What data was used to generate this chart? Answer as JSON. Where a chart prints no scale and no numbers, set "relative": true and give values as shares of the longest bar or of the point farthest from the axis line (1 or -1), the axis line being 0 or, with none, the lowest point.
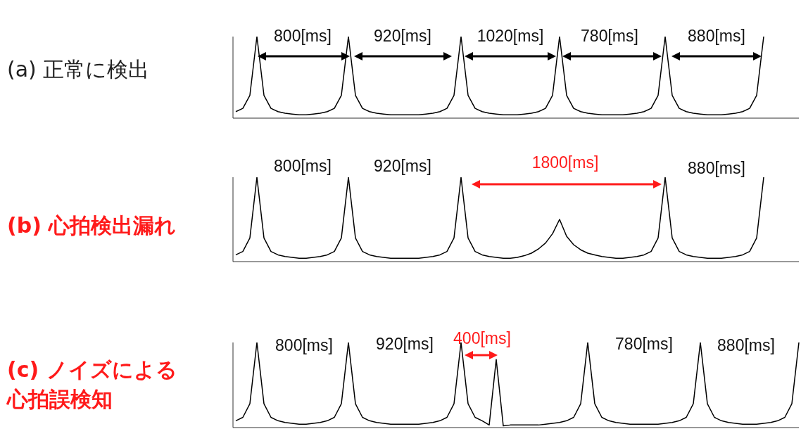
{
  "chart_data": [
    {
      "type": "line",
      "title": "(a) 正常に検出",
      "relative": true,
      "annotations": [
        "800[ms]",
        "920[ms]",
        "1020[ms]",
        "780[ms]",
        "880[ms]"
      ],
      "categories": [
        null,
        null,
        null,
        null,
        null,
        null,
        null,
        null,
        null,
        null,
        null,
        null,
        null,
        null,
        null,
        null,
        null,
        null,
        null,
        null,
        null,
        null,
        null,
        null,
        null,
        null,
        null,
        null,
        null,
        null,
        null,
        null,
        null,
        null,
        null,
        null,
        null,
        null,
        null,
        null,
        null,
        null,
        null,
        null,
        null,
        null,
        null,
        null,
        null,
        null,
        null,
        null,
        null,
        null,
        null,
        null,
        null,
        null,
        null,
        null,
        null,
        null,
        null,
        null,
        null,
        null,
        null,
        null,
        null,
        null,
        null,
        null,
        null,
        null,
        null,
        null
      ],
      "series": [
        {
          "color": "#000000",
          "values": [
            0.08,
            0.12,
            0.28,
            1,
            0.28,
            0.12,
            0.08,
            0.06,
            0.05,
            0.04,
            0.04,
            0.05,
            0.06,
            0.08,
            0.12,
            0.28,
            1,
            0.28,
            0.12,
            0.08,
            0.06,
            0.05,
            0.04,
            0.04,
            0.04,
            0.04,
            0.04,
            0.05,
            0.06,
            0.08,
            0.12,
            0.28,
            1,
            0.28,
            0.12,
            0.08,
            0.06,
            0.05,
            0.04,
            0.04,
            0.04,
            0.05,
            0.06,
            0.08,
            0.12,
            0.28,
            1,
            0.28,
            0.12,
            0.08,
            0.06,
            0.05,
            0.04,
            0.04,
            0.04,
            0.04,
            0.05,
            0.06,
            0.08,
            0.12,
            0.28,
            1,
            0.28,
            0.12,
            0.08,
            0.06,
            0.05,
            0.04,
            0.04,
            0.04,
            0.05,
            0.06,
            0.08,
            0.12,
            0.28,
            1
          ]
        }
      ]
    },
    {
      "type": "line",
      "title": "(b) 心拍検出漏れ",
      "relative": true,
      "annotations": [
        "800[ms]",
        "920[ms]",
        "1800[ms]",
        "880[ms]"
      ],
      "categories": [
        null,
        null,
        null,
        null,
        null,
        null,
        null,
        null,
        null,
        null,
        null,
        null,
        null,
        null,
        null,
        null,
        null,
        null,
        null,
        null,
        null,
        null,
        null,
        null,
        null,
        null,
        null,
        null,
        null,
        null,
        null,
        null,
        null,
        null,
        null,
        null,
        null,
        null,
        null,
        null,
        null,
        null,
        null,
        null,
        null,
        null,
        null,
        null,
        null,
        null,
        null,
        null,
        null,
        null,
        null,
        null,
        null,
        null,
        null,
        null,
        null,
        null,
        null,
        null,
        null,
        null,
        null,
        null,
        null,
        null,
        null,
        null,
        null,
        null,
        null,
        null
      ],
      "series": [
        {
          "color": "#000000",
          "values": [
            0.08,
            0.12,
            0.28,
            1,
            0.28,
            0.12,
            0.08,
            0.06,
            0.05,
            0.04,
            0.04,
            0.05,
            0.06,
            0.08,
            0.12,
            0.28,
            1,
            0.28,
            0.12,
            0.08,
            0.06,
            0.05,
            0.04,
            0.04,
            0.04,
            0.04,
            0.04,
            0.05,
            0.06,
            0.08,
            0.12,
            0.28,
            1,
            0.28,
            0.12,
            0.08,
            0.06,
            0.05,
            0.04,
            0.04,
            0.05,
            0.07,
            0.1,
            0.15,
            0.22,
            0.33,
            0.5,
            0.3,
            0.2,
            0.14,
            0.1,
            0.08,
            0.06,
            0.05,
            0.04,
            0.04,
            0.05,
            0.06,
            0.08,
            0.12,
            0.28,
            1,
            0.28,
            0.12,
            0.08,
            0.06,
            0.05,
            0.04,
            0.04,
            0.04,
            0.05,
            0.06,
            0.08,
            0.12,
            0.28,
            1
          ]
        }
      ]
    },
    {
      "type": "line",
      "title": "(c) ノイズによる心拍誤検知",
      "relative": true,
      "annotations": [
        "800[ms]",
        "920[ms]",
        "400[ms]",
        "780[ms]",
        "880[ms]"
      ],
      "categories": [
        null,
        null,
        null,
        null,
        null,
        null,
        null,
        null,
        null,
        null,
        null,
        null,
        null,
        null,
        null,
        null,
        null,
        null,
        null,
        null,
        null,
        null,
        null,
        null,
        null,
        null,
        null,
        null,
        null,
        null,
        null,
        null,
        null,
        null,
        null,
        null,
        null,
        null,
        null,
        null,
        null,
        null,
        null,
        null,
        null,
        null,
        null,
        null,
        null,
        null,
        null,
        null,
        null,
        null,
        null,
        null,
        null,
        null,
        null,
        null,
        null,
        null,
        null,
        null,
        null,
        null,
        null,
        null,
        null,
        null,
        null,
        null,
        null,
        null,
        null,
        null,
        null,
        null,
        null,
        null,
        null
      ],
      "series": [
        {
          "color": "#000000",
          "values": [
            0.08,
            0.12,
            0.28,
            1,
            0.28,
            0.12,
            0.08,
            0.06,
            0.05,
            0.04,
            0.04,
            0.05,
            0.06,
            0.08,
            0.12,
            0.28,
            1,
            0.28,
            0.12,
            0.08,
            0.06,
            0.05,
            0.04,
            0.04,
            0.04,
            0.04,
            0.04,
            0.05,
            0.06,
            0.08,
            0.12,
            0.28,
            1,
            0.28,
            0.12,
            0.08,
            0.03,
            0.8,
            0.02,
            0.03,
            0.03,
            0.03,
            0.03,
            0.03,
            0.04,
            0.05,
            0.06,
            0.08,
            0.12,
            0.28,
            1,
            0.28,
            0.12,
            0.08,
            0.06,
            0.05,
            0.04,
            0.04,
            0.04,
            0.04,
            0.04,
            0.05,
            0.06,
            0.08,
            0.12,
            0.28,
            1,
            0.28,
            0.12,
            0.08,
            0.06,
            0.05,
            0.04,
            0.04,
            0.04,
            0.05,
            0.06,
            0.08,
            0.12,
            0.28,
            1
          ]
        }
      ]
    }
  ]
}
